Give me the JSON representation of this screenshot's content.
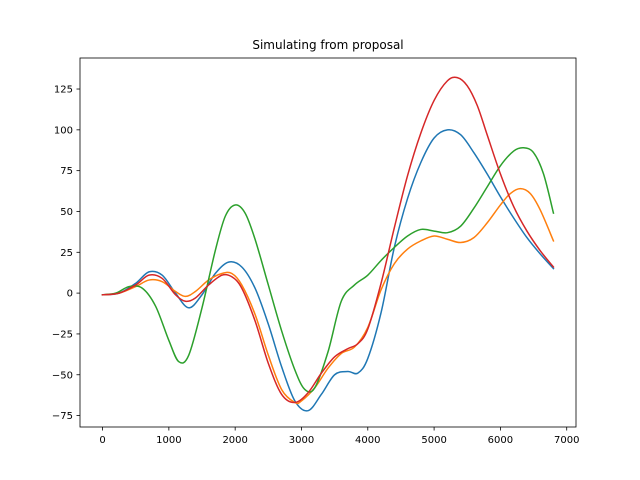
{
  "chart_data": {
    "type": "line",
    "title": "Simulating from proposal",
    "xlabel": "",
    "ylabel": "",
    "xlim": [
      -340,
      7140
    ],
    "ylim": [
      -82,
      144
    ],
    "xticks": [
      0,
      1000,
      2000,
      3000,
      4000,
      5000,
      6000,
      7000
    ],
    "yticks": [
      -75,
      -50,
      -25,
      0,
      25,
      50,
      75,
      100,
      125
    ],
    "grid": false,
    "legend": "none",
    "series": [
      {
        "color": "#1f77b4",
        "x": [
          0,
          250,
          500,
          700,
          900,
          1100,
          1300,
          1500,
          1700,
          1900,
          2100,
          2300,
          2500,
          2700,
          2900,
          3100,
          3300,
          3500,
          3700,
          3850,
          4000,
          4200,
          4400,
          4600,
          4800,
          5000,
          5200,
          5400,
          5600,
          5800,
          6000,
          6200,
          6400,
          6600,
          6800
        ],
        "y": [
          -1,
          0,
          6,
          13,
          11,
          0,
          -9,
          -1,
          12,
          19,
          16,
          3,
          -19,
          -45,
          -66,
          -72,
          -62,
          -50,
          -48,
          -49,
          -40,
          -12,
          28,
          58,
          80,
          95,
          100,
          97,
          86,
          73,
          59,
          46,
          34,
          24,
          15
        ]
      },
      {
        "color": "#ff7f0e",
        "x": [
          0,
          250,
          500,
          700,
          900,
          1100,
          1250,
          1400,
          1600,
          1800,
          1950,
          2100,
          2300,
          2500,
          2700,
          2900,
          3000,
          3200,
          3400,
          3600,
          3800,
          4000,
          4200,
          4400,
          4600,
          4800,
          5000,
          5200,
          5400,
          5600,
          5800,
          6000,
          6150,
          6300,
          6450,
          6600,
          6800
        ],
        "y": [
          -1,
          0,
          4,
          8,
          7,
          1,
          -2,
          1,
          8,
          12,
          12,
          5,
          -13,
          -38,
          -59,
          -67,
          -66,
          -58,
          -46,
          -37,
          -33,
          -21,
          2,
          18,
          27,
          32,
          35,
          33,
          31,
          34,
          43,
          54,
          61,
          64,
          61,
          51,
          32
        ]
      },
      {
        "color": "#2ca02c",
        "x": [
          0,
          200,
          400,
          600,
          800,
          1000,
          1150,
          1300,
          1500,
          1700,
          1850,
          2000,
          2150,
          2300,
          2500,
          2700,
          2900,
          3050,
          3200,
          3400,
          3600,
          3800,
          4000,
          4200,
          4400,
          4600,
          4800,
          5000,
          5200,
          5400,
          5600,
          5800,
          6000,
          6200,
          6350,
          6500,
          6650,
          6800
        ],
        "y": [
          -1,
          0,
          4,
          3,
          -8,
          -29,
          -42,
          -38,
          -9,
          26,
          47,
          54,
          49,
          33,
          5,
          -23,
          -47,
          -59,
          -58,
          -36,
          -5,
          5,
          11,
          20,
          28,
          35,
          39,
          38,
          37,
          41,
          52,
          65,
          78,
          87,
          89,
          86,
          73,
          49
        ]
      },
      {
        "color": "#d62728",
        "x": [
          0,
          250,
          500,
          700,
          900,
          1100,
          1250,
          1400,
          1600,
          1800,
          1950,
          2100,
          2300,
          2500,
          2700,
          2900,
          3100,
          3300,
          3500,
          3700,
          3850,
          4000,
          4200,
          4400,
          4600,
          4800,
          5000,
          5200,
          5350,
          5500,
          5650,
          5800,
          6000,
          6200,
          6400,
          6600,
          6800
        ],
        "y": [
          -1,
          0,
          5,
          11,
          9,
          -1,
          -5,
          -3,
          5,
          11,
          10,
          3,
          -17,
          -43,
          -62,
          -67,
          -61,
          -49,
          -39,
          -34,
          -31,
          -22,
          6,
          40,
          72,
          98,
          118,
          130,
          132,
          127,
          115,
          97,
          73,
          53,
          38,
          26,
          16
        ]
      }
    ]
  }
}
